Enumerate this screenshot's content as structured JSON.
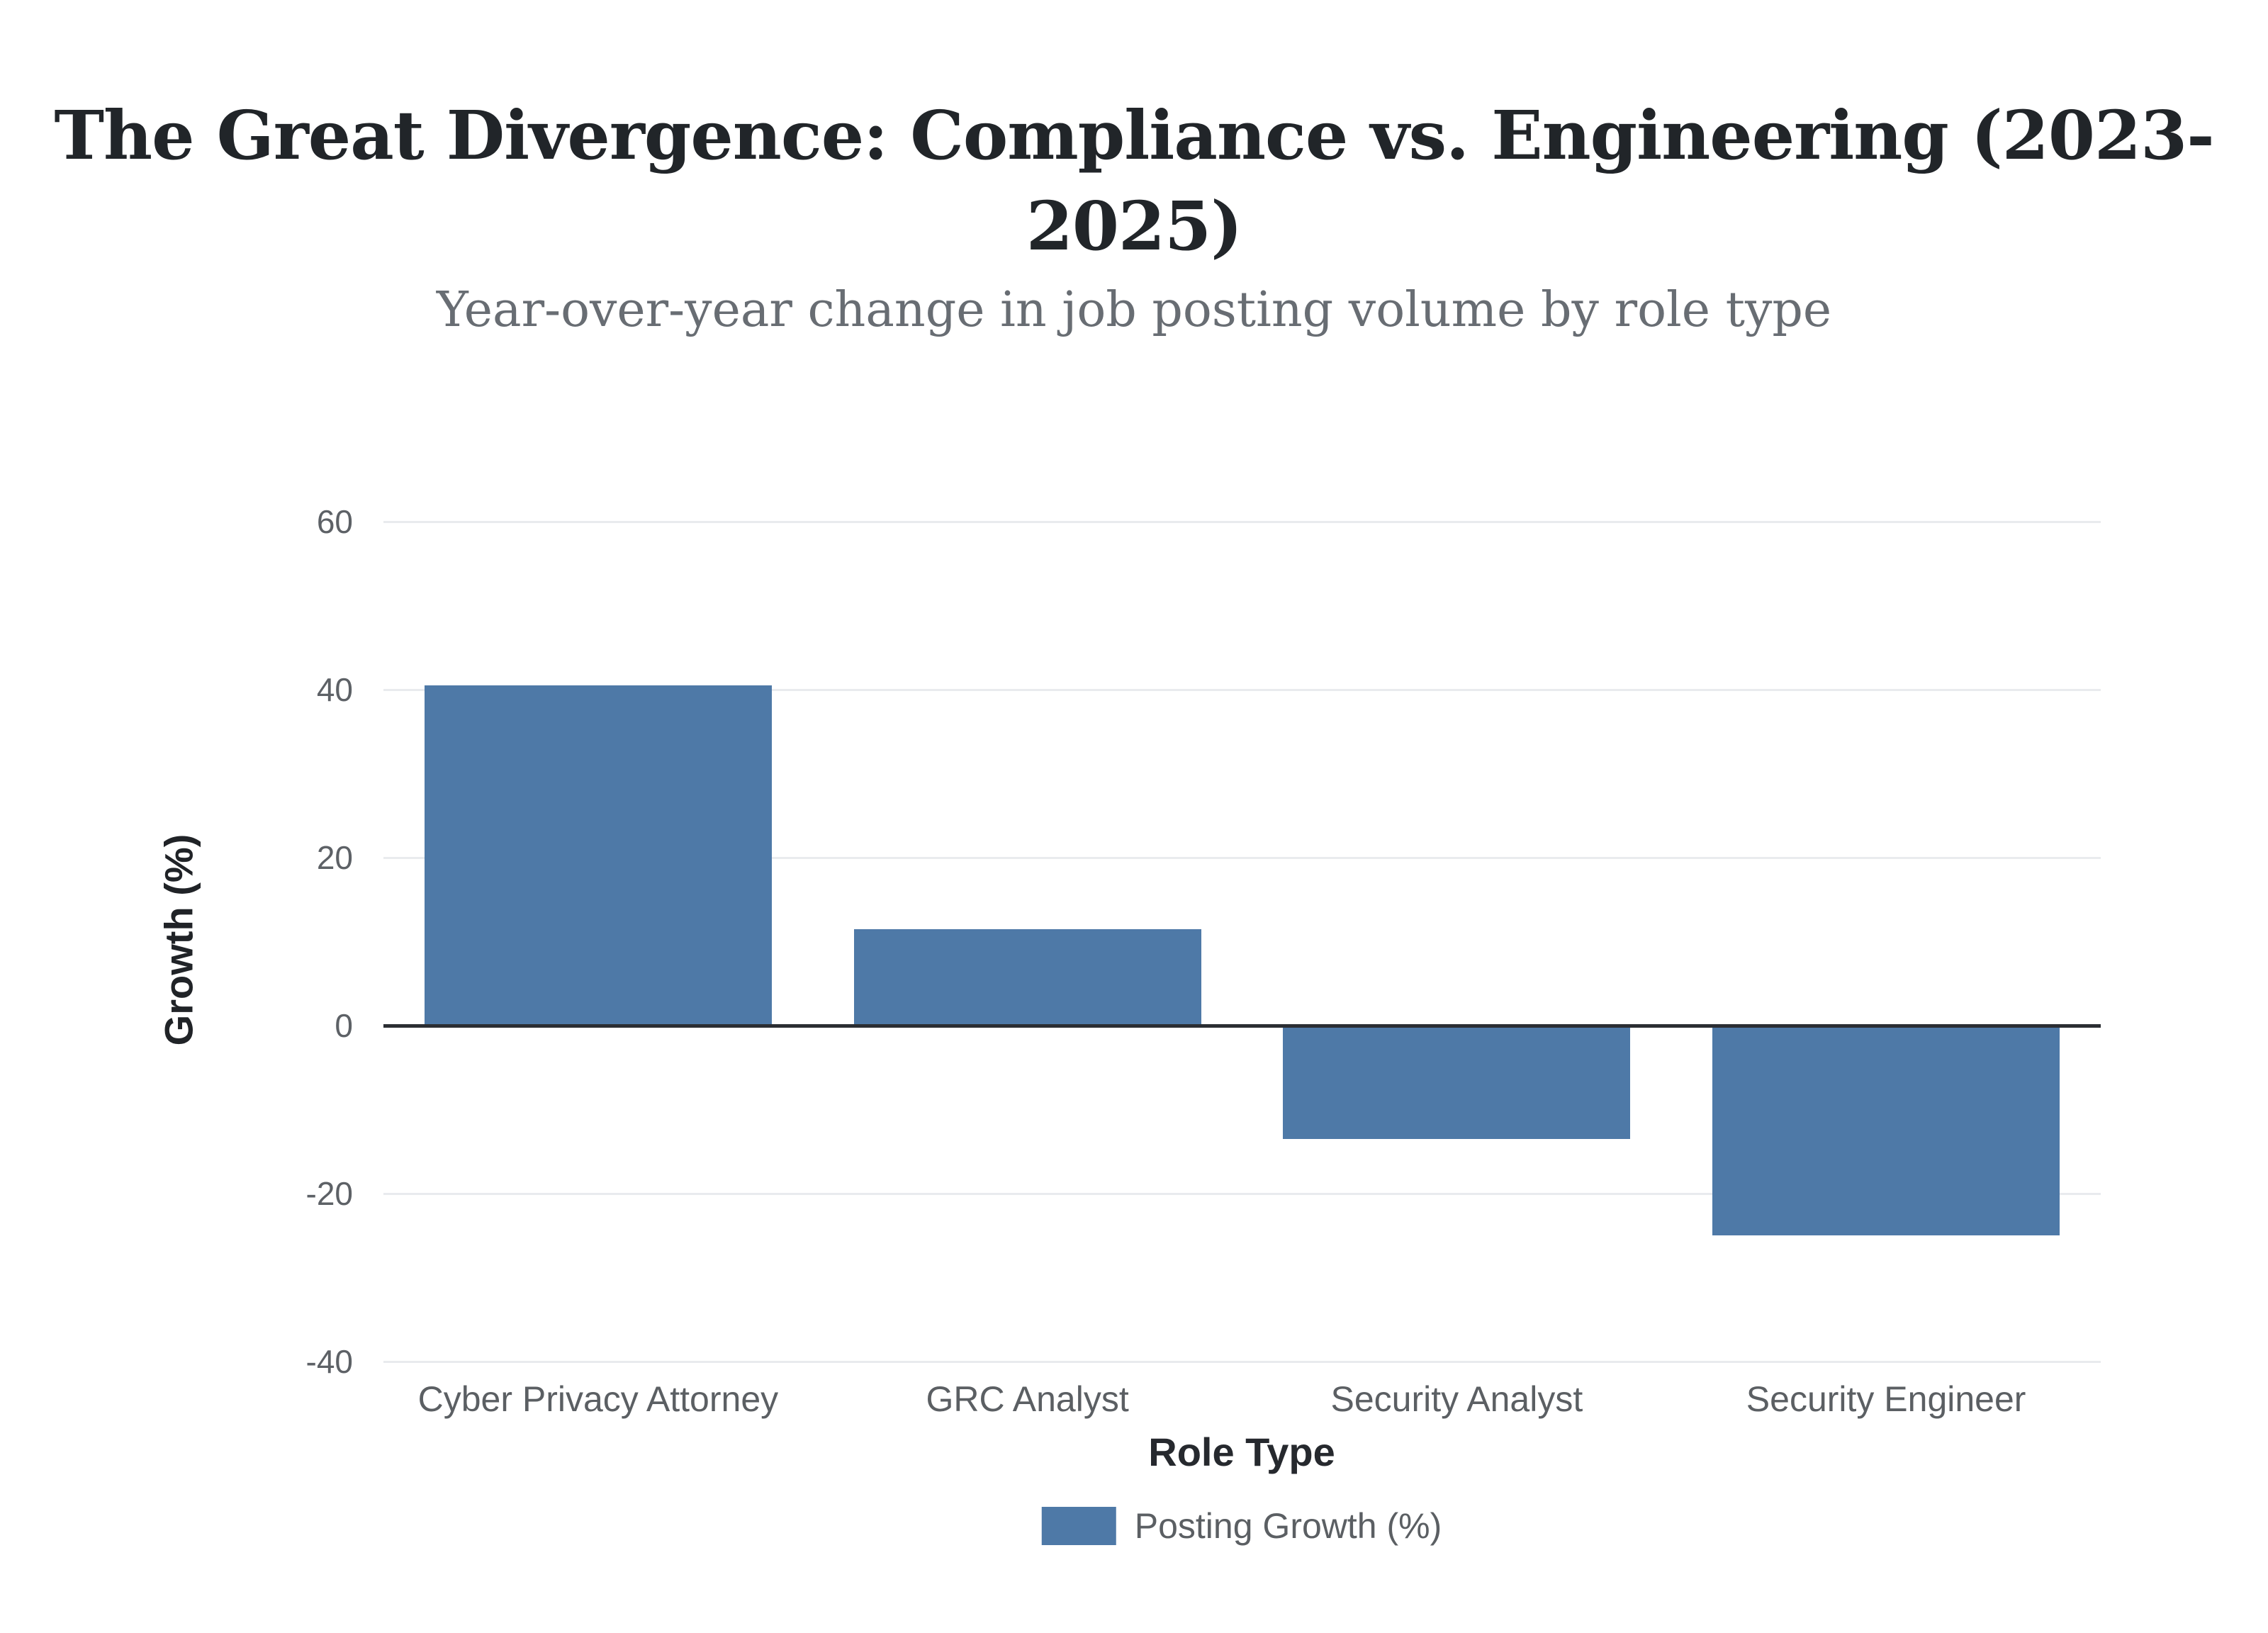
{
  "header": {
    "title": "The Great Divergence: Compliance vs. Engineering (2023-2025)",
    "title_lines": [
      "The Great Divergence: Compliance vs. Engineering (2023-",
      "2025)"
    ],
    "subtitle": "Year-over-year change in job posting volume by role type"
  },
  "chart_data": {
    "type": "bar",
    "title": "The Great Divergence: Compliance vs. Engineering (2023-2025)",
    "subtitle": "Year-over-year change in job posting volume by role type",
    "categories": [
      "Cyber Privacy Attorney",
      "GRC Analyst",
      "Security Analyst",
      "Security Engineer"
    ],
    "series": [
      {
        "name": "Posting Growth (%)",
        "values": [
          40.5,
          11.5,
          -13.5,
          -25
        ]
      }
    ],
    "xlabel": "Role Type",
    "ylabel": "Growth (%)",
    "ylim": [
      -40,
      60
    ],
    "yticks": [
      60,
      40,
      20,
      0,
      -20,
      -40
    ],
    "grid": "horizontal",
    "legend_position": "bottom",
    "bar_color": "#4e79a7"
  },
  "axes": {
    "x_title": "Role Type",
    "y_title": "Growth (%)"
  },
  "legend": {
    "label": "Posting Growth (%)",
    "swatch_color": "#4e79a7"
  },
  "colors": {
    "background": "#ffffff",
    "title": "#212529",
    "subtitle": "#686d73",
    "tick_label": "#5d6166",
    "category_label": "#5b5f63",
    "gridline": "#e9ebee",
    "zero_line": "#2b2e33",
    "bar": "#4e79a7"
  }
}
